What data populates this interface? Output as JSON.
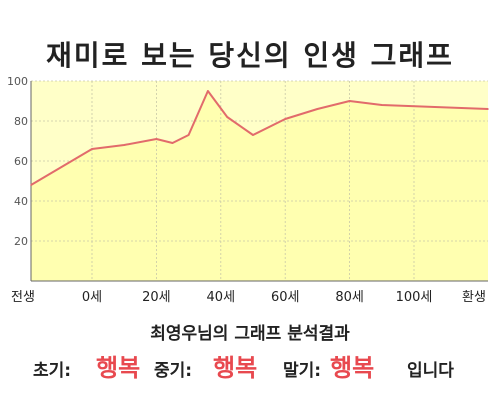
{
  "title": "재미로 보는 당신의 인생 그래프",
  "chart_data": {
    "type": "area",
    "title": "재미로 보는 당신의 인생 그래프",
    "x": [
      "전생",
      0,
      10,
      20,
      25,
      30,
      36,
      42,
      50,
      60,
      70,
      80,
      90,
      "환생"
    ],
    "x_tick_labels": [
      "전생",
      "0세",
      "20세",
      "40세",
      "60세",
      "80세",
      "100세",
      "환생"
    ],
    "series": [
      {
        "values": [
          48,
          66,
          68,
          71,
          69,
          73,
          95,
          82,
          73,
          81,
          86,
          90,
          88,
          86
        ]
      }
    ],
    "ylim": [
      0,
      100
    ],
    "y_ticks": [
      20,
      40,
      60,
      80,
      100
    ],
    "grid": true,
    "line_color": "#e26b6b",
    "fill_color": "#ffffc8"
  },
  "result": {
    "title": "최영우님의 그래프 분석결과",
    "early_label": "초기:",
    "early_value": "행복",
    "mid_label": "중기:",
    "mid_value": "행복",
    "late_label": "말기:",
    "late_value": "행복",
    "ending": "입니다"
  },
  "colors": {
    "accent": "#e8494f",
    "plot_bg": "#ffffc8",
    "line": "#e26b6b"
  }
}
